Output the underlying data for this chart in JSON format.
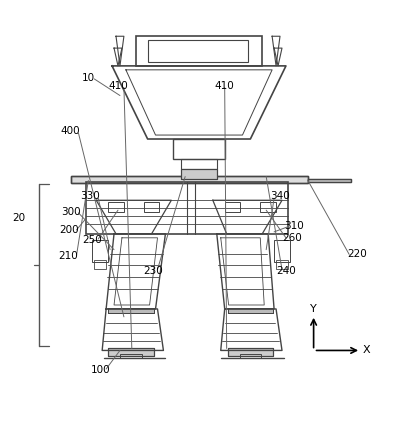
{
  "bg_color": "#ffffff",
  "line_color": "#555555",
  "dark_line": "#333333",
  "light_line": "#888888",
  "figsize": [
    3.98,
    4.44
  ],
  "dpi": 100
}
